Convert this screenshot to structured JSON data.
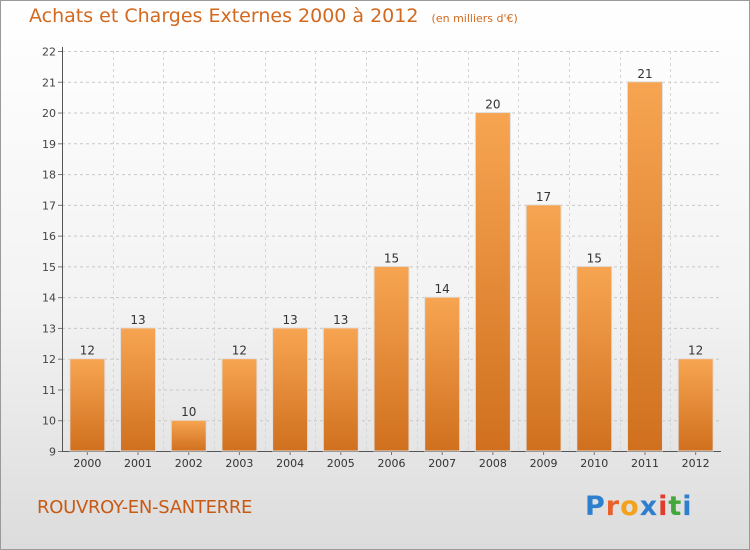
{
  "header": {
    "title": "Achats et Charges Externes 2000 à 2012",
    "unit": "(en milliers d'€)"
  },
  "footer": {
    "commune": "ROUVROY-EN-SANTERRE",
    "brand": "Proxiti"
  },
  "colors": {
    "bar_light": "#f7a552",
    "bar_dark": "#d0701e",
    "title": "#d2691e",
    "commune": "#c85a14"
  },
  "chart_data": {
    "type": "bar",
    "title": "Achats et Charges Externes 2000 à 2012",
    "subtitle": "(en milliers d'€)",
    "xlabel": "",
    "ylabel": "",
    "categories": [
      "2000",
      "2001",
      "2002",
      "2003",
      "2004",
      "2005",
      "2006",
      "2007",
      "2008",
      "2009",
      "2010",
      "2011",
      "2012"
    ],
    "values": [
      12,
      13,
      10,
      12,
      13,
      13,
      15,
      14,
      20,
      17,
      15,
      21,
      12
    ],
    "ylim": [
      9,
      22
    ],
    "yticks": [
      9,
      10,
      11,
      12,
      13,
      14,
      15,
      16,
      17,
      18,
      19,
      20,
      21,
      22
    ],
    "grid": true,
    "data_labels": true
  }
}
